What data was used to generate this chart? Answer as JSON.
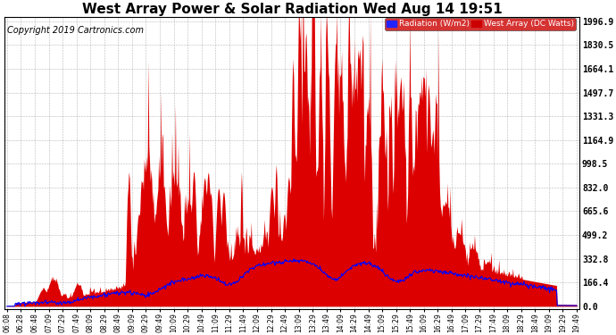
{
  "title": "West Array Power & Solar Radiation Wed Aug 14 19:51",
  "copyright": "Copyright 2019 Cartronics.com",
  "legend_radiation": "Radiation (W/m2)",
  "legend_west": "West Array (DC Watts)",
  "background_color": "#ffffff",
  "grid_color": "#888888",
  "fill_color": "#dd0000",
  "line_color": "#0000ff",
  "ytick_labels": [
    "0.0",
    "166.4",
    "332.8",
    "499.2",
    "665.6",
    "832.0",
    "998.5",
    "1164.9",
    "1331.3",
    "1497.7",
    "1664.1",
    "1830.5",
    "1996.9"
  ],
  "ymax": 1996.9,
  "ymin": 0.0,
  "title_fontsize": 11,
  "copyright_fontsize": 7,
  "tick_labels": [
    "06:08",
    "06:28",
    "06:48",
    "07:09",
    "07:29",
    "07:49",
    "08:09",
    "08:29",
    "08:49",
    "09:09",
    "09:29",
    "09:49",
    "10:09",
    "10:29",
    "10:49",
    "11:09",
    "11:29",
    "11:49",
    "12:09",
    "12:29",
    "12:49",
    "13:09",
    "13:29",
    "13:49",
    "14:09",
    "14:29",
    "14:49",
    "15:09",
    "15:29",
    "15:49",
    "16:09",
    "16:29",
    "16:49",
    "17:09",
    "17:29",
    "17:49",
    "18:09",
    "18:29",
    "18:49",
    "19:09",
    "19:29",
    "19:49"
  ]
}
